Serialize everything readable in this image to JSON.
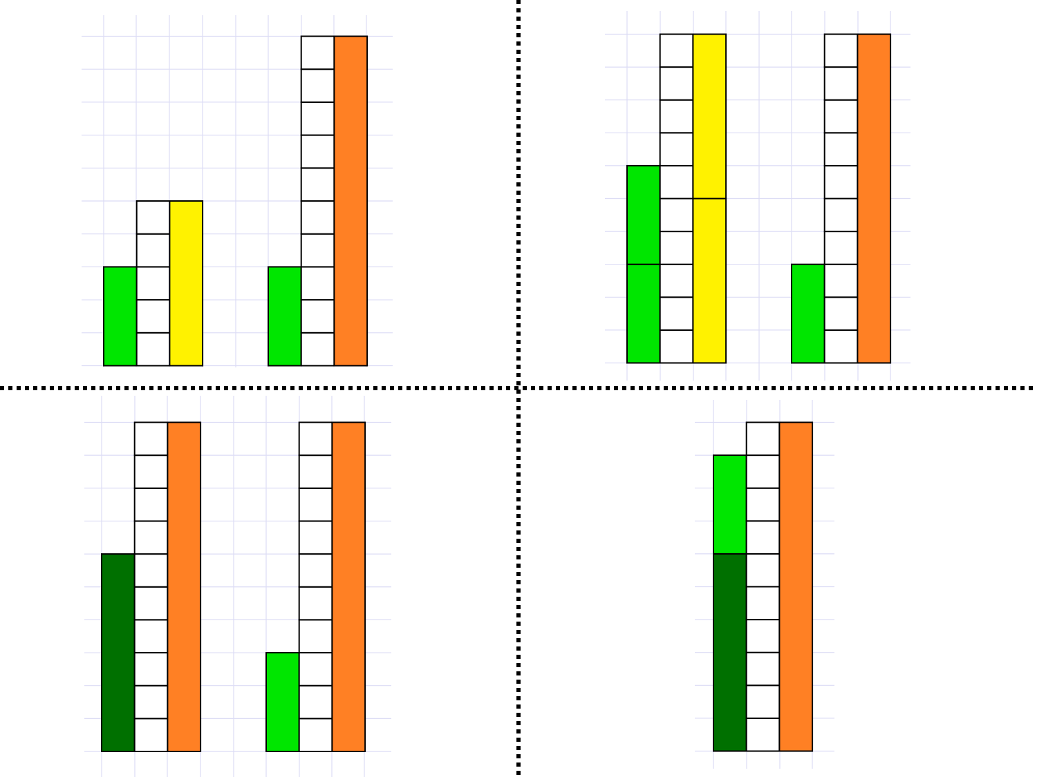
{
  "colors": {
    "grid": "#dcdcf5",
    "outline": "#000000",
    "divider": "#000000",
    "background": "#ffffff",
    "light_green": "#00e600",
    "dark_green": "#007000",
    "yellow": "#fff200",
    "orange": "#ff8024",
    "empty_cell": "#ffffff"
  },
  "panels": [
    {
      "name": "top-left",
      "groups": [
        {
          "left": [
            {
              "color": "light_green",
              "units": 3
            }
          ],
          "counter_units": 5,
          "right": [
            {
              "color": "yellow",
              "units": 5
            }
          ]
        },
        {
          "left": [
            {
              "color": "light_green",
              "units": 3
            }
          ],
          "counter_units": 10,
          "right": [
            {
              "color": "orange",
              "units": 10
            }
          ]
        }
      ]
    },
    {
      "name": "top-right",
      "groups": [
        {
          "left": [
            {
              "color": "light_green",
              "units": 3
            },
            {
              "color": "light_green",
              "units": 3
            }
          ],
          "counter_units": 10,
          "right": [
            {
              "color": "yellow",
              "units": 5
            },
            {
              "color": "yellow",
              "units": 5
            }
          ]
        },
        {
          "left": [
            {
              "color": "light_green",
              "units": 3
            }
          ],
          "counter_units": 10,
          "right": [
            {
              "color": "orange",
              "units": 10
            }
          ]
        }
      ]
    },
    {
      "name": "bottom-left",
      "groups": [
        {
          "left": [
            {
              "color": "dark_green",
              "units": 6
            }
          ],
          "counter_units": 10,
          "right": [
            {
              "color": "orange",
              "units": 10
            }
          ]
        },
        {
          "left": [
            {
              "color": "light_green",
              "units": 3
            }
          ],
          "counter_units": 10,
          "right": [
            {
              "color": "orange",
              "units": 10
            }
          ]
        }
      ]
    },
    {
      "name": "bottom-right",
      "groups": [
        {
          "left": [
            {
              "color": "dark_green",
              "units": 6
            },
            {
              "color": "light_green",
              "units": 3
            }
          ],
          "counter_units": 10,
          "right": [
            {
              "color": "orange",
              "units": 10
            }
          ]
        }
      ]
    }
  ]
}
